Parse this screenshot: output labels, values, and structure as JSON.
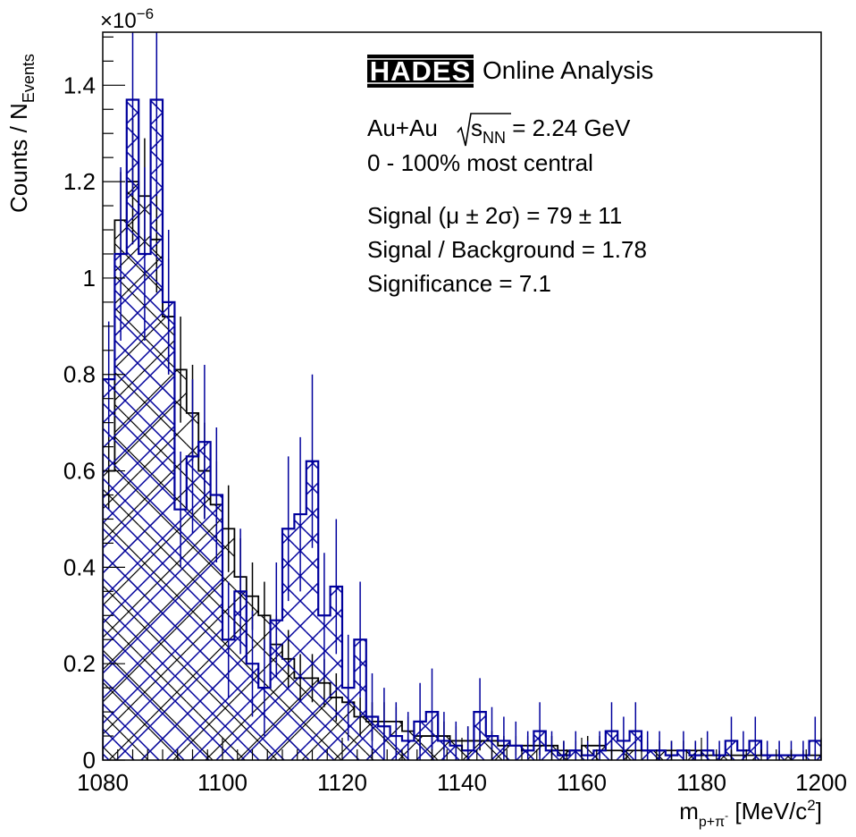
{
  "chart_data": {
    "type": "bar",
    "ylabel": "Counts / N",
    "ylabel_sub": "Events",
    "y_exponent_prefix": "×10",
    "y_exponent_sup": "−6",
    "xlabel_m": "m",
    "xlabel_sub": "p+π",
    "xlabel_sub_sup": "-",
    "xlabel_unit": " [MeV/c",
    "xlabel_unit_sup": "2",
    "xlabel_close": "]",
    "xlim": [
      1080,
      1200
    ],
    "ylim": [
      0,
      1.51
    ],
    "y_scale": 1e-06,
    "bin_width": 2,
    "x_ticks": [
      1080,
      1100,
      1120,
      1140,
      1160,
      1180,
      1200
    ],
    "x_tick_labels": [
      "1080",
      "1100",
      "1120",
      "1140",
      "1160",
      "1180",
      "1200"
    ],
    "y_ticks": [
      0,
      0.2,
      0.4,
      0.6,
      0.8,
      1.0,
      1.2,
      1.4
    ],
    "y_tick_labels": [
      "0",
      "0.2",
      "0.4",
      "0.6",
      "0.8",
      "1",
      "1.2",
      "1.4"
    ],
    "x_minor_step": 2.5,
    "y_minor_step": 0.05,
    "grid": false,
    "legend": "none",
    "colors": {
      "background": "#000000",
      "signal": "#00009c"
    },
    "series": [
      {
        "role": "background",
        "bin_low_edges": [
          1080,
          1082,
          1084,
          1086,
          1088,
          1090,
          1092,
          1094,
          1096,
          1098,
          1100,
          1102,
          1104,
          1106,
          1108,
          1110,
          1112,
          1114,
          1116,
          1118,
          1120,
          1122,
          1124,
          1126,
          1128,
          1130,
          1132,
          1134,
          1136,
          1138,
          1140,
          1142,
          1144,
          1146,
          1148,
          1150,
          1152,
          1154,
          1156,
          1158,
          1160,
          1162,
          1164,
          1166,
          1168,
          1170,
          1172,
          1174,
          1176,
          1178,
          1180,
          1182,
          1184,
          1186,
          1188,
          1190,
          1192,
          1194,
          1196,
          1198
        ],
        "values": [
          0.6,
          1.12,
          1.2,
          1.17,
          1.08,
          0.92,
          0.81,
          0.72,
          0.6,
          0.53,
          0.48,
          0.38,
          0.34,
          0.3,
          0.24,
          0.21,
          0.17,
          0.17,
          0.16,
          0.13,
          0.12,
          0.09,
          0.08,
          0.08,
          0.08,
          0.06,
          0.05,
          0.05,
          0.05,
          0.04,
          0.04,
          0.04,
          0.04,
          0.03,
          0.03,
          0.03,
          0.03,
          0.03,
          0.02,
          0.02,
          0.03,
          0.03,
          0.02,
          0.02,
          0.02,
          0.02,
          0.02,
          0.02,
          0.02,
          0.02,
          0.01,
          0.01,
          0.01,
          0.01,
          0.01,
          0.01,
          0.01,
          0.01,
          0.01,
          0.01
        ],
        "errors": [
          0.08,
          0.1,
          0.13,
          0.12,
          0.11,
          0.12,
          0.11,
          0.1,
          0.1,
          0.09,
          0.09,
          0.08,
          0.07,
          0.07,
          0.06,
          0.06,
          0.05,
          0.05,
          0.05,
          0.05,
          0.04,
          0.04,
          0.04,
          0.04,
          0.03,
          0.03,
          0.03,
          0.03,
          0.03,
          0.03,
          0.03,
          0.02,
          0.02,
          0.02,
          0.02,
          0.02,
          0.02,
          0.02,
          0.02,
          0.02,
          0.02,
          0.02,
          0.02,
          0.02,
          0.02,
          0.02,
          0.02,
          0.02,
          0.02,
          0.02,
          0.01,
          0.01,
          0.01,
          0.01,
          0.01,
          0.01,
          0.01,
          0.01,
          0.01,
          0.01
        ]
      },
      {
        "role": "signal",
        "bin_low_edges": [
          1080,
          1082,
          1084,
          1086,
          1088,
          1090,
          1092,
          1094,
          1096,
          1098,
          1100,
          1102,
          1104,
          1106,
          1108,
          1110,
          1112,
          1114,
          1116,
          1118,
          1120,
          1122,
          1124,
          1126,
          1128,
          1130,
          1132,
          1134,
          1136,
          1138,
          1140,
          1142,
          1144,
          1146,
          1148,
          1150,
          1152,
          1154,
          1156,
          1158,
          1160,
          1162,
          1164,
          1166,
          1168,
          1170,
          1172,
          1174,
          1176,
          1178,
          1180,
          1182,
          1184,
          1186,
          1188,
          1190,
          1192,
          1194,
          1196,
          1198
        ],
        "values": [
          0.79,
          1.05,
          1.37,
          1.05,
          1.37,
          0.95,
          0.52,
          0.63,
          0.66,
          0.55,
          0.25,
          0.35,
          0.2,
          0.15,
          0.29,
          0.48,
          0.51,
          0.62,
          0.3,
          0.36,
          0.15,
          0.25,
          0.09,
          0.07,
          0.05,
          0.04,
          0.08,
          0.1,
          0.04,
          0.03,
          0.02,
          0.1,
          0.05,
          0.04,
          0.03,
          0.02,
          0.06,
          0.02,
          0.01,
          0.02,
          0.01,
          0.02,
          0.06,
          0.04,
          0.06,
          0.02,
          0.02,
          0.01,
          0.02,
          0.01,
          0.02,
          0.01,
          0.04,
          0.02,
          0.04,
          0.01,
          0.01,
          0.01,
          0.01,
          0.04
        ],
        "errors": [
          0.12,
          0.18,
          0.2,
          0.18,
          0.2,
          0.15,
          0.12,
          0.16,
          0.16,
          0.14,
          0.12,
          0.13,
          0.11,
          0.1,
          0.12,
          0.15,
          0.16,
          0.18,
          0.13,
          0.14,
          0.11,
          0.12,
          0.09,
          0.08,
          0.07,
          0.06,
          0.08,
          0.09,
          0.06,
          0.05,
          0.05,
          0.07,
          0.06,
          0.05,
          0.05,
          0.04,
          0.06,
          0.04,
          0.03,
          0.04,
          0.03,
          0.04,
          0.06,
          0.05,
          0.06,
          0.04,
          0.04,
          0.03,
          0.04,
          0.03,
          0.04,
          0.03,
          0.05,
          0.04,
          0.05,
          0.03,
          0.03,
          0.03,
          0.03,
          0.05
        ]
      }
    ]
  },
  "annotations": {
    "logo_text": "HADES",
    "headline": "Online Analysis",
    "system_prefix": "Au+Au ",
    "sqrt_s": "s",
    "sqrt_sub": "NN",
    "system_suffix": " = 2.24 GeV",
    "centrality": "0 - 100% most central",
    "signal_line": "Signal (μ ± 2σ) = 79 ± 11",
    "sb_line": "Signal / Background = 1.78",
    "significance_line": "Significance = 7.1"
  }
}
